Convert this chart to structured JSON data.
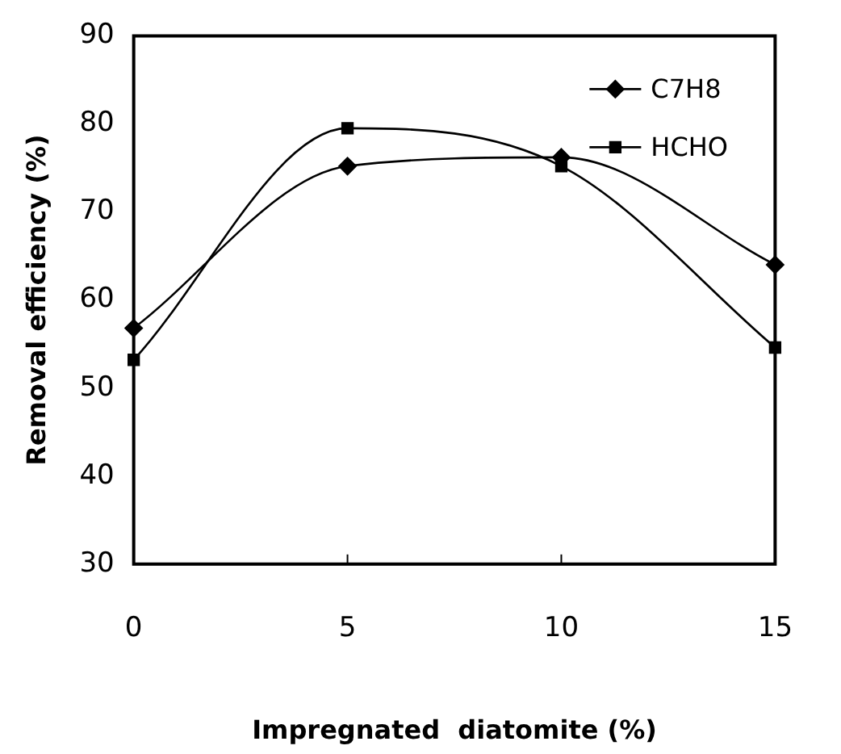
{
  "chart_data": {
    "type": "line",
    "xlabel": "Impregnated  diatomite (%)",
    "ylabel": "Removal efficiency (%)",
    "x": [
      0,
      5,
      10,
      15
    ],
    "series": [
      {
        "name": "C7H8",
        "color": "#000000",
        "marker": "diamond",
        "values": [
          56.8,
          75.2,
          76.2,
          64.0
        ]
      },
      {
        "name": "HCHO",
        "color": "#000000",
        "marker": "square",
        "values": [
          53.2,
          79.5,
          75.2,
          54.6
        ]
      }
    ],
    "xlim": [
      0,
      15
    ],
    "xticks": [
      0,
      5,
      10,
      15
    ],
    "ylim": [
      30,
      90
    ],
    "yticks": [
      30,
      40,
      50,
      60,
      70,
      80,
      90
    ],
    "grid": false,
    "legend": "top right",
    "line_style": "solid"
  }
}
